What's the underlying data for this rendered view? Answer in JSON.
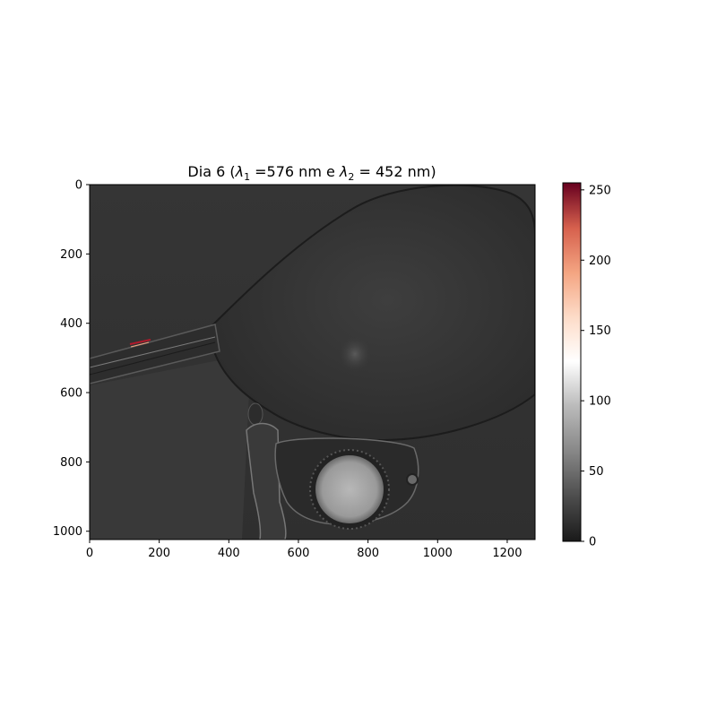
{
  "chart_data": {
    "type": "heatmap",
    "title_prefix": "Dia 6 (",
    "title_mid": " =576 nm e ",
    "title_end": " = 452 nm)",
    "title_lambda": "λ",
    "title_sub_1": "1",
    "title_sub_2": "2",
    "x_ticks": [
      0,
      200,
      400,
      600,
      800,
      1000,
      1200
    ],
    "y_ticks": [
      0,
      200,
      400,
      600,
      800,
      1000
    ],
    "xlim": [
      0,
      1280
    ],
    "ylim": [
      1024,
      0
    ],
    "colorbar": {
      "ticks": [
        0,
        50,
        100,
        150,
        200,
        250
      ],
      "range": [
        0,
        255
      ],
      "colormap": "RdGy_r",
      "stops": [
        {
          "value": 0,
          "color": "#1a1a1a"
        },
        {
          "value": 32,
          "color": "#4d4d4d"
        },
        {
          "value": 64,
          "color": "#878787"
        },
        {
          "value": 96,
          "color": "#bababa"
        },
        {
          "value": 128,
          "color": "#ffffff"
        },
        {
          "value": 160,
          "color": "#fddbc7"
        },
        {
          "value": 191,
          "color": "#f4a582"
        },
        {
          "value": 223,
          "color": "#d6604d"
        },
        {
          "value": 255,
          "color": "#67001f"
        }
      ]
    }
  }
}
